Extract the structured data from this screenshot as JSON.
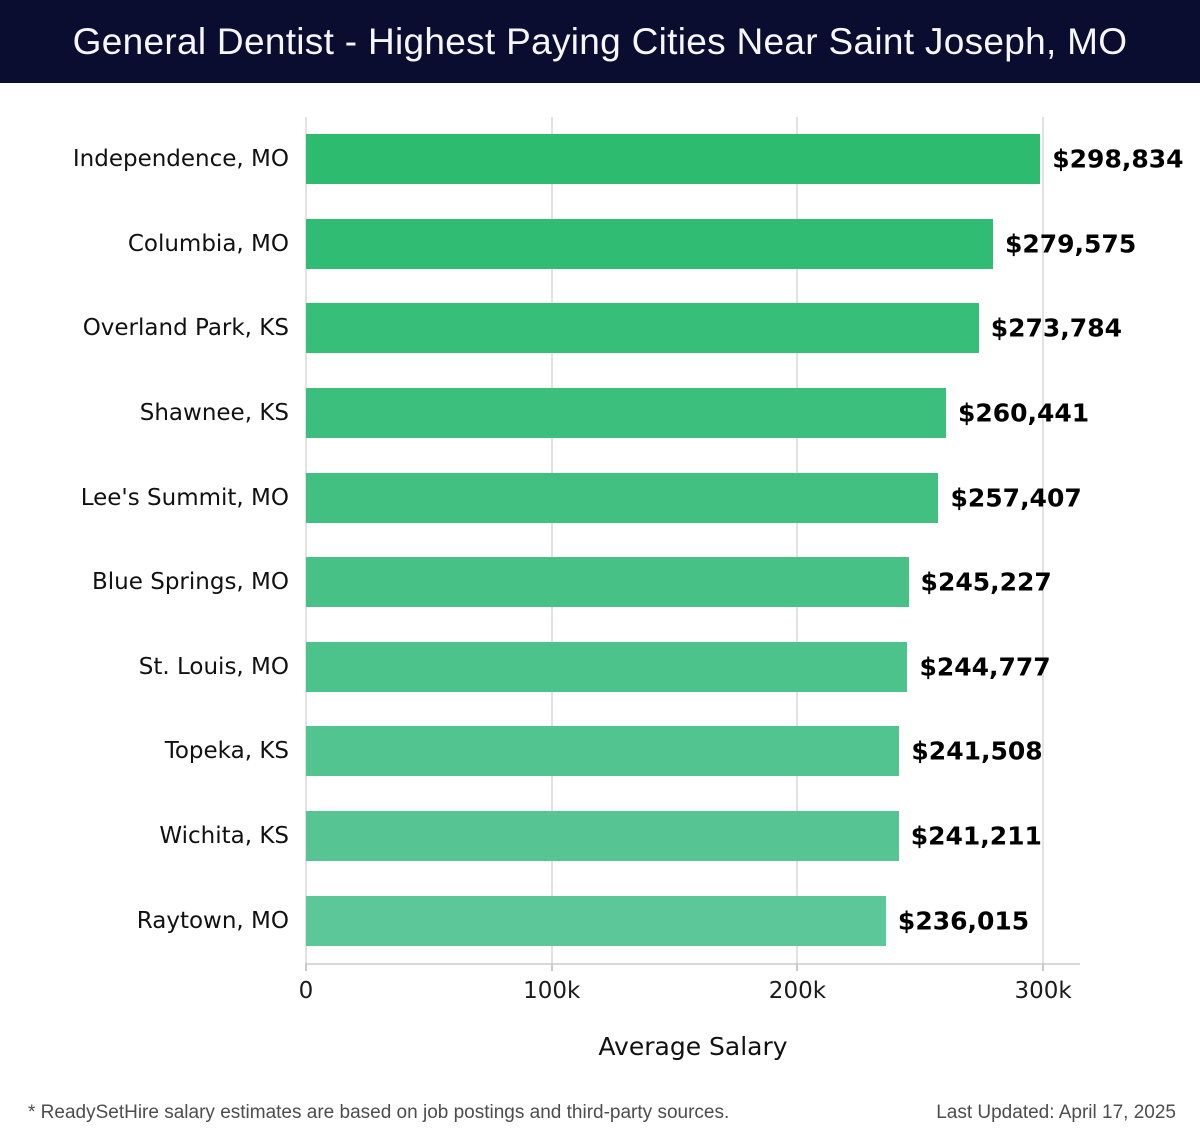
{
  "header": {
    "title": "General Dentist - Highest Paying Cities Near Saint Joseph, MO"
  },
  "colors": {
    "header_bg": "#0a0d30",
    "title_text": "#f7f7fb",
    "gridline": "#e2e2e2",
    "axis_line": "#d9d9d9",
    "value_text": "#000000",
    "footer_text": "#4d4d4d",
    "bar_gradient_top": "#2cbb6f",
    "bar_gradient_bottom": "#5cc798"
  },
  "chart_data": {
    "type": "bar",
    "orientation": "horizontal",
    "title": "General Dentist - Highest Paying Cities Near Saint Joseph, MO",
    "xlabel": "Average Salary",
    "ylabel": "",
    "xlim": [
      0,
      315000
    ],
    "grid": "vertical",
    "legend": "none",
    "categories": [
      "Independence, MO",
      "Columbia, MO",
      "Overland Park, KS",
      "Shawnee, KS",
      "Lee's Summit, MO",
      "Blue Springs, MO",
      "St. Louis, MO",
      "Topeka, KS",
      "Wichita, KS",
      "Raytown, MO"
    ],
    "values": [
      298834,
      279575,
      273784,
      260441,
      257407,
      245227,
      244777,
      241508,
      241211,
      236015
    ],
    "value_labels": [
      "$298,834",
      "$279,575",
      "$273,784",
      "$260,441",
      "$257,407",
      "$245,227",
      "$244,777",
      "$241,508",
      "$241,211",
      "$236,015"
    ],
    "bar_colors": [
      "#2cbb6f",
      "#31bc74",
      "#37be78",
      "#3cbf7d",
      "#41c081",
      "#47c186",
      "#4cc38a",
      "#51c48f",
      "#57c593",
      "#5cc798"
    ],
    "ticks": [
      {
        "value": 0,
        "label": "0"
      },
      {
        "value": 100000,
        "label": "100k"
      },
      {
        "value": 200000,
        "label": "200k"
      },
      {
        "value": 300000,
        "label": "300k"
      }
    ]
  },
  "footer": {
    "disclaimer": "* ReadySetHire salary estimates are based on job postings and third-party sources.",
    "last_updated": "Last Updated: April 17, 2025"
  }
}
